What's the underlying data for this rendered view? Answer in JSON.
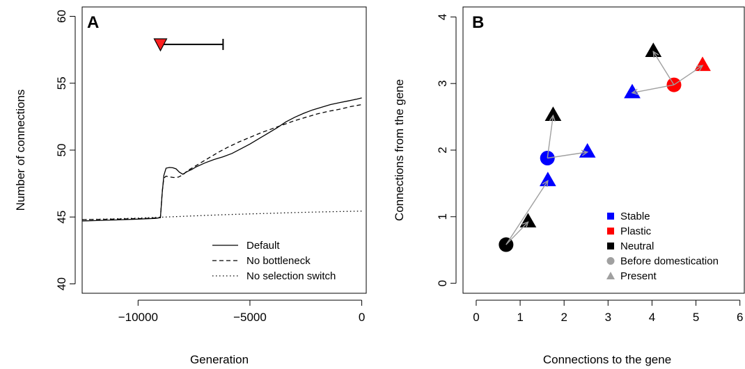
{
  "chart_data": [
    {
      "type": "line",
      "panel_label": "A",
      "xlabel": "Generation",
      "ylabel": "Number of connections",
      "xlim": [
        -12500,
        200
      ],
      "ylim": [
        39.3,
        60.7
      ],
      "x_ticks": [
        -10000,
        -5000,
        0
      ],
      "x_tick_labels": [
        "−10000",
        "−5000",
        "0"
      ],
      "y_ticks": [
        40,
        45,
        50,
        55,
        60
      ],
      "y_tick_labels": [
        "40",
        "45",
        "50",
        "55",
        "60"
      ],
      "legend_position": "bottom-right",
      "series": [
        {
          "name": "Default",
          "line_style": "solid",
          "x": [
            -12500,
            -11000,
            -10000,
            -9200,
            -9000,
            -8920,
            -8850,
            -8750,
            -8600,
            -8450,
            -8300,
            -8150,
            -8000,
            -7800,
            -7600,
            -7400,
            -7200,
            -7000,
            -6600,
            -6200,
            -5800,
            -5400,
            -5000,
            -4600,
            -4200,
            -3800,
            -3400,
            -3000,
            -2600,
            -2200,
            -1800,
            -1400,
            -1000,
            -600,
            -200,
            0
          ],
          "y": [
            44.7,
            44.78,
            44.84,
            44.9,
            44.95,
            46.8,
            48.1,
            48.65,
            48.7,
            48.68,
            48.6,
            48.35,
            48.2,
            48.4,
            48.55,
            48.75,
            48.9,
            49.05,
            49.3,
            49.5,
            49.75,
            50.1,
            50.45,
            50.85,
            51.25,
            51.65,
            52.1,
            52.45,
            52.75,
            53.0,
            53.2,
            53.4,
            53.55,
            53.68,
            53.82,
            53.9
          ]
        },
        {
          "name": "No bottleneck",
          "line_style": "dashed",
          "x": [
            -12500,
            -11000,
            -10000,
            -9200,
            -9000,
            -8920,
            -8850,
            -8750,
            -8600,
            -8400,
            -8200,
            -8000,
            -7800,
            -7500,
            -7200,
            -6800,
            -6400,
            -6000,
            -5500,
            -5000,
            -4500,
            -4000,
            -3500,
            -3000,
            -2500,
            -2000,
            -1500,
            -1000,
            -500,
            0
          ],
          "y": [
            44.8,
            44.84,
            44.88,
            44.93,
            44.96,
            46.9,
            47.9,
            48.05,
            48.0,
            47.95,
            47.98,
            48.15,
            48.45,
            48.75,
            49.05,
            49.45,
            49.85,
            50.2,
            50.6,
            50.95,
            51.3,
            51.6,
            51.9,
            52.2,
            52.45,
            52.7,
            52.9,
            53.05,
            53.25,
            53.4
          ]
        },
        {
          "name": "No selection switch",
          "line_style": "dotted",
          "x": [
            -12500,
            -11000,
            -10000,
            -9000,
            -8000,
            -7000,
            -6000,
            -5000,
            -4000,
            -3000,
            -2000,
            -1000,
            0
          ],
          "y": [
            44.8,
            44.87,
            44.92,
            44.98,
            45.05,
            45.12,
            45.18,
            45.23,
            45.28,
            45.33,
            45.37,
            45.41,
            45.44
          ]
        }
      ],
      "annotation": {
        "type": "interval_marker",
        "marker": "red-down-triangle",
        "marker_color": "#ff2020",
        "x_start": -9000,
        "x_end": -6200,
        "y": 57.9
      }
    },
    {
      "type": "scatter",
      "panel_label": "B",
      "xlabel": "Connections to the gene",
      "ylabel": "Connections from the gene",
      "xlim": [
        -0.3,
        6.1
      ],
      "ylim": [
        -0.15,
        4.15
      ],
      "x_ticks": [
        0,
        1,
        2,
        3,
        4,
        5,
        6
      ],
      "x_tick_labels": [
        "0",
        "1",
        "2",
        "3",
        "4",
        "5",
        "6"
      ],
      "y_ticks": [
        0,
        1,
        2,
        3,
        4
      ],
      "y_tick_labels": [
        "0",
        "1",
        "2",
        "3",
        "4"
      ],
      "legend_position": "bottom-right",
      "colors": {
        "Stable": "#0000ff",
        "Plastic": "#ff0000",
        "Neutral": "#000000",
        "marker_key": "#a0a0a0",
        "arrow": "#a0a0a0"
      },
      "legend": [
        {
          "label": "Stable",
          "symbol": "square",
          "color": "#0000ff"
        },
        {
          "label": "Plastic",
          "symbol": "square",
          "color": "#ff0000"
        },
        {
          "label": "Neutral",
          "symbol": "square",
          "color": "#000000"
        },
        {
          "label": "Before domestication",
          "symbol": "circle",
          "color": "#a0a0a0"
        },
        {
          "label": "Present",
          "symbol": "triangle",
          "color": "#a0a0a0"
        }
      ],
      "groups": [
        {
          "origin": {
            "x": 0.68,
            "y": 0.58,
            "category": "Neutral"
          },
          "present": [
            {
              "x": 1.18,
              "y": 0.92,
              "category": "Neutral"
            },
            {
              "x": 1.63,
              "y": 1.54,
              "category": "Stable"
            }
          ]
        },
        {
          "origin": {
            "x": 1.62,
            "y": 1.88,
            "category": "Stable"
          },
          "present": [
            {
              "x": 1.75,
              "y": 2.52,
              "category": "Neutral"
            },
            {
              "x": 2.53,
              "y": 1.97,
              "category": "Stable"
            }
          ]
        },
        {
          "origin": {
            "x": 4.5,
            "y": 2.98,
            "category": "Plastic"
          },
          "present": [
            {
              "x": 3.55,
              "y": 2.86,
              "category": "Stable"
            },
            {
              "x": 4.03,
              "y": 3.48,
              "category": "Neutral"
            },
            {
              "x": 5.15,
              "y": 3.27,
              "category": "Plastic"
            }
          ]
        }
      ]
    }
  ]
}
